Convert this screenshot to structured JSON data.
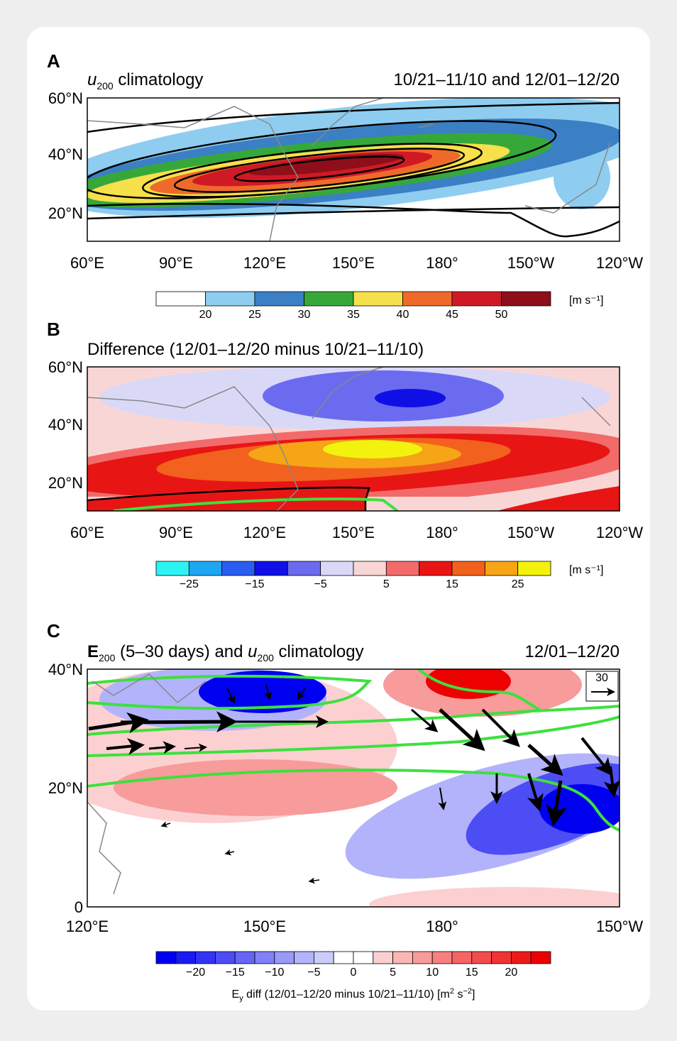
{
  "panels": [
    {
      "label": "A",
      "title": [
        "u",
        "200",
        " climatology"
      ],
      "right_title": "10/21–11/10 and 12/01–12/20",
      "yticks": [
        "60°N",
        "40°N",
        "20°N"
      ],
      "xticks": [
        "60°E",
        "90°E",
        "120°E",
        "150°E",
        "180°",
        "150°W",
        "120°W"
      ],
      "colorbar": {
        "colors": [
          "#ffffff",
          "#8ecdf0",
          "#3b7fc4",
          "#36a83a",
          "#f6e04b",
          "#ef6a2a",
          "#cf1a26",
          "#8e0e19"
        ],
        "labels": [
          "20",
          "25",
          "30",
          "35",
          "40",
          "45",
          "50"
        ],
        "unit": "[m s⁻¹]"
      }
    },
    {
      "label": "B",
      "title": [
        "Difference (12/01–12/20 minus 10/21–11/10)"
      ],
      "yticks": [
        "60°N",
        "40°N",
        "20°N"
      ],
      "xticks": [
        "60°E",
        "90°E",
        "120°E",
        "150°E",
        "180°",
        "150°W",
        "120°W"
      ],
      "colorbar": {
        "colors": [
          "#2ef2f2",
          "#1ea6f2",
          "#2a5ef2",
          "#1010e6",
          "#6b6bf0",
          "#d9d9f7",
          "#f9d6d6",
          "#f36a6a",
          "#e81515",
          "#f2611d",
          "#f5a516",
          "#f2f20e"
        ],
        "labels": [
          "−25",
          "−15",
          "−5",
          "5",
          "15",
          "25"
        ],
        "unit": "[m s⁻¹]"
      }
    },
    {
      "label": "C",
      "title": [
        "E",
        "200",
        " (5–30 days) and ",
        "u",
        "200",
        " climatology"
      ],
      "right_title": "12/01–12/20",
      "yticks": [
        "40°N",
        "20°N",
        "0"
      ],
      "xticks": [
        "120°E",
        "150°E",
        "180°",
        "150°W"
      ],
      "reference_vector": "30",
      "colorbar": {
        "colors": [
          "#0000f0",
          "#1a1af2",
          "#3333f3",
          "#4d4df5",
          "#6666f6",
          "#8080f8",
          "#9999f9",
          "#b3b3fb",
          "#ccccfc",
          "#ffffff",
          "#ffffff",
          "#fcd0d0",
          "#fab5b5",
          "#f89b9b",
          "#f68080",
          "#f46666",
          "#f24d4d",
          "#f03333",
          "#ee1a1a",
          "#ec0000"
        ],
        "labels": [
          "−20",
          "−15",
          "−10",
          "−5",
          "0",
          "5",
          "10",
          "15",
          "20"
        ],
        "caption": [
          "E",
          "y",
          " diff (12/01–12/20 minus 10/21–11/10) [m",
          "2",
          " s",
          "−2",
          "]"
        ]
      }
    }
  ]
}
